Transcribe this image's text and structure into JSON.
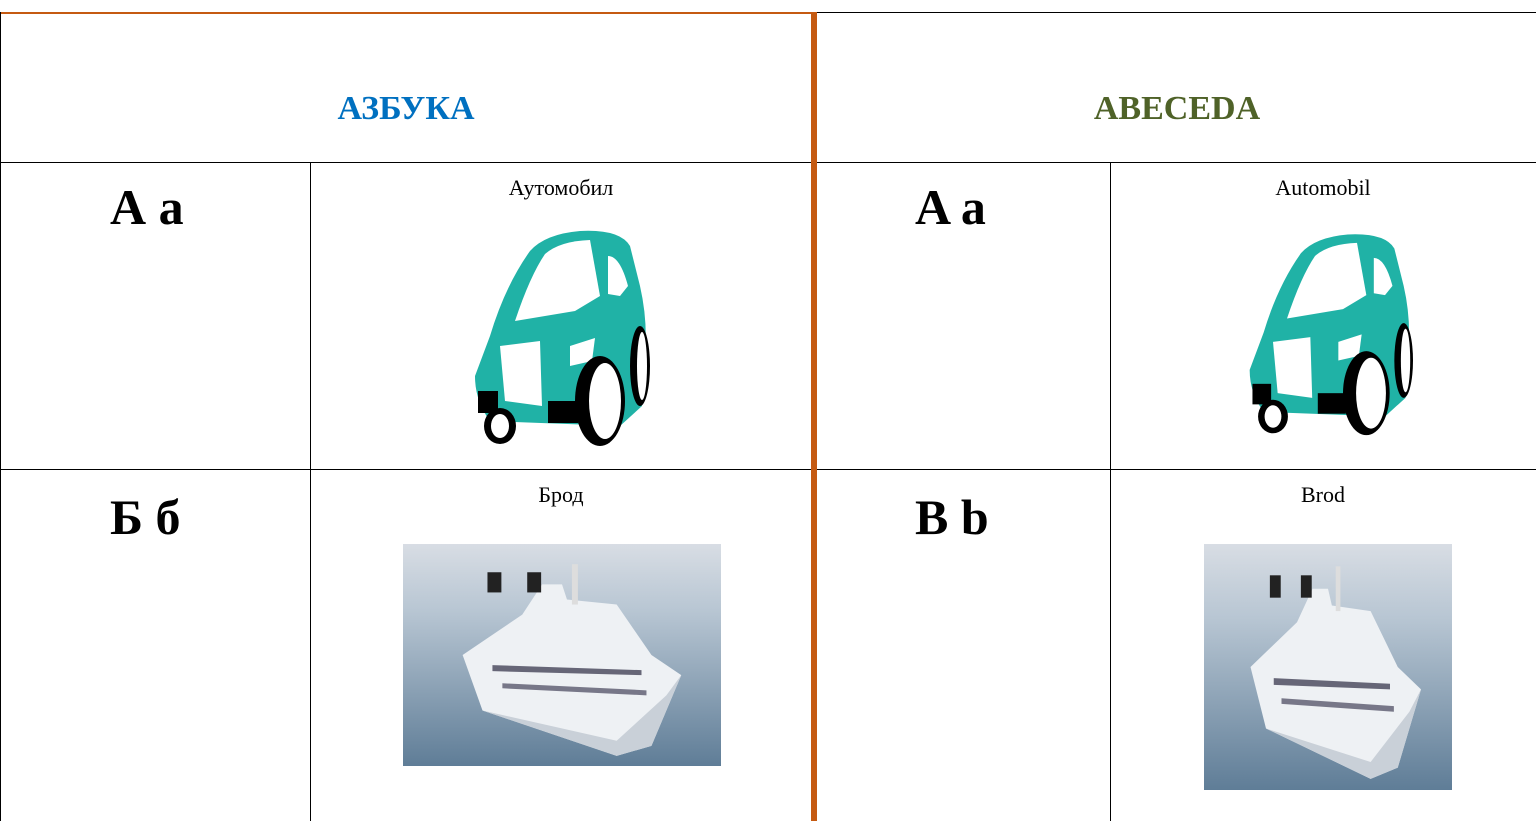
{
  "left": {
    "title": "АЗБУКА",
    "rows": [
      {
        "letter": "А а",
        "word": "Аутомобил"
      },
      {
        "letter": "Б б",
        "word": "Брод"
      }
    ]
  },
  "right": {
    "title": "ABECEDA",
    "rows": [
      {
        "letter": "A a",
        "word": "Automobil"
      },
      {
        "letter": "B b",
        "word": "Brod"
      }
    ]
  }
}
